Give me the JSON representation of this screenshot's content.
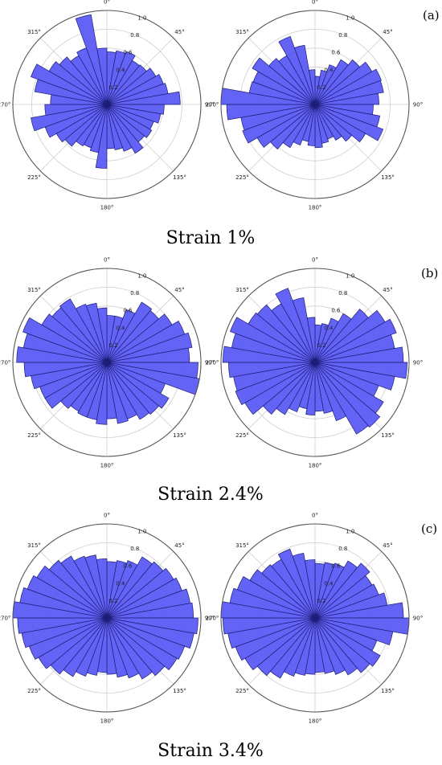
{
  "figure": {
    "captions": [
      "Strain 1%",
      "Strain 2.4%",
      "Strain 3.4%"
    ],
    "panel_labels": [
      "(a)",
      "(b)",
      "(c)"
    ]
  },
  "style": {
    "bar_fill": "#5b5bf5",
    "bar_stroke": "#1e1e78",
    "grid_color": "#cfcfcf",
    "spoke_color": "#222222",
    "frame_color": "#555555"
  },
  "chart_data": [
    {
      "type": "bar",
      "subtype": "polar-rose",
      "theta_tick_labels": [
        "0°",
        "45°",
        "90°",
        "135°",
        "180°",
        "225°",
        "270°",
        "315°"
      ],
      "r_tick_labels": [
        "0.2",
        "0.4",
        "0.6",
        "0.8",
        "1.0"
      ],
      "rlim": [
        0,
        1.0
      ],
      "bins": 36,
      "bin_width_deg": 10,
      "grid": true,
      "values": [
        0.56,
        0.58,
        0.6,
        0.54,
        0.55,
        0.6,
        0.64,
        0.66,
        0.78,
        0.61,
        0.58,
        0.53,
        0.55,
        0.52,
        0.6,
        0.53,
        0.49,
        0.47,
        0.68,
        0.52,
        0.49,
        0.51,
        0.58,
        0.62,
        0.7,
        0.82,
        0.66,
        0.6,
        0.78,
        0.86,
        0.71,
        0.66,
        0.6,
        0.64,
        0.97,
        0.6
      ]
    },
    {
      "type": "bar",
      "subtype": "polar-rose",
      "theta_tick_labels": [
        "0°",
        "45°",
        "90°",
        "135°",
        "180°",
        "225°",
        "270°",
        "315°"
      ],
      "r_tick_labels": [
        "0.2",
        "0.4",
        "0.6",
        "0.8",
        "1.0"
      ],
      "rlim": [
        0,
        1.0
      ],
      "bins": 36,
      "bin_width_deg": 10,
      "grid": true,
      "values": [
        0.3,
        0.37,
        0.45,
        0.55,
        0.62,
        0.7,
        0.75,
        0.74,
        0.68,
        0.62,
        0.7,
        0.77,
        0.62,
        0.51,
        0.44,
        0.39,
        0.42,
        0.46,
        0.44,
        0.4,
        0.46,
        0.53,
        0.62,
        0.71,
        0.82,
        0.8,
        0.94,
        1.0,
        0.71,
        0.7,
        0.77,
        0.64,
        0.6,
        0.77,
        0.64,
        0.37
      ]
    },
    {
      "type": "bar",
      "subtype": "polar-rose",
      "theta_tick_labels": [
        "0°",
        "45°",
        "90°",
        "135°",
        "180°",
        "225°",
        "270°",
        "315°"
      ],
      "r_tick_labels": [
        "0.2",
        "0.4",
        "0.6",
        "0.8",
        "1.0"
      ],
      "rlim": [
        0,
        1.0
      ],
      "bins": 36,
      "bin_width_deg": 10,
      "grid": true,
      "values": [
        0.5,
        0.5,
        0.6,
        0.74,
        0.72,
        0.8,
        0.88,
        0.92,
        0.88,
        0.97,
        1.0,
        0.66,
        0.76,
        0.72,
        0.7,
        0.64,
        0.66,
        0.6,
        0.66,
        0.62,
        0.62,
        0.6,
        0.64,
        0.76,
        0.76,
        0.82,
        0.88,
        0.96,
        0.9,
        0.95,
        0.8,
        0.76,
        0.78,
        0.66,
        0.64,
        0.58
      ]
    },
    {
      "type": "bar",
      "subtype": "polar-rose",
      "theta_tick_labels": [
        "0°",
        "45°",
        "90°",
        "135°",
        "180°",
        "225°",
        "270°",
        "315°"
      ],
      "r_tick_labels": [
        "0.2",
        "0.4",
        "0.6",
        "0.8",
        "1.0"
      ],
      "rlim": [
        0,
        1.0
      ],
      "bins": 36,
      "bin_width_deg": 10,
      "grid": true,
      "values": [
        0.4,
        0.42,
        0.5,
        0.6,
        0.74,
        0.86,
        0.92,
        0.86,
        0.94,
        0.98,
        0.86,
        0.72,
        0.84,
        0.9,
        0.88,
        0.66,
        0.55,
        0.52,
        0.56,
        0.5,
        0.56,
        0.64,
        0.72,
        0.86,
        0.9,
        0.88,
        0.92,
        0.98,
        0.9,
        0.96,
        0.82,
        0.8,
        0.72,
        0.84,
        0.7,
        0.48
      ]
    },
    {
      "type": "bar",
      "subtype": "polar-rose",
      "theta_tick_labels": [
        "0°",
        "45°",
        "90°",
        "135°",
        "180°",
        "225°",
        "270°",
        "315°"
      ],
      "r_tick_labels": [
        "0.2",
        "0.4",
        "0.6",
        "0.8",
        "1.0"
      ],
      "rlim": [
        0,
        1.0
      ],
      "bins": 36,
      "bin_width_deg": 10,
      "grid": true,
      "values": [
        0.6,
        0.62,
        0.65,
        0.75,
        0.78,
        0.82,
        0.85,
        0.9,
        0.92,
        0.97,
        0.94,
        0.88,
        0.86,
        0.8,
        0.75,
        0.68,
        0.64,
        0.6,
        0.58,
        0.62,
        0.66,
        0.72,
        0.78,
        0.84,
        0.88,
        0.92,
        0.95,
        1.0,
        0.94,
        0.9,
        0.86,
        0.8,
        0.76,
        0.7,
        0.68,
        0.63
      ]
    },
    {
      "type": "bar",
      "subtype": "polar-rose",
      "theta_tick_labels": [
        "0°",
        "45°",
        "90°",
        "135°",
        "180°",
        "225°",
        "270°",
        "315°"
      ],
      "r_tick_labels": [
        "0.2",
        "0.4",
        "0.6",
        "0.8",
        "1.0"
      ],
      "rlim": [
        0,
        1.0
      ],
      "bins": 36,
      "bin_width_deg": 10,
      "grid": true,
      "values": [
        0.58,
        0.6,
        0.62,
        0.7,
        0.76,
        0.7,
        0.72,
        0.78,
        0.94,
        1.0,
        0.84,
        0.7,
        0.8,
        0.76,
        0.7,
        0.64,
        0.6,
        0.58,
        0.6,
        0.62,
        0.66,
        0.74,
        0.8,
        0.86,
        0.9,
        0.94,
        0.98,
        1.0,
        0.92,
        0.88,
        0.8,
        0.74,
        0.72,
        0.78,
        0.7,
        0.62
      ]
    }
  ]
}
